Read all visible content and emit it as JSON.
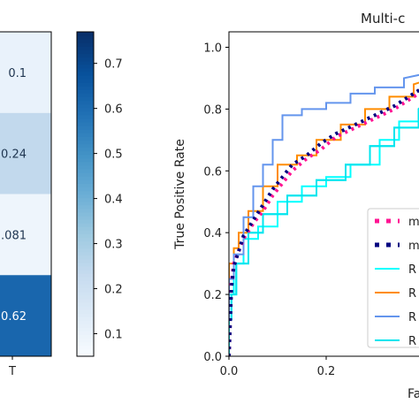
{
  "chart_data": [
    {
      "type": "heatmap",
      "cells": [
        {
          "label": "0.1",
          "value": 0.1
        },
        {
          "label": "0.24",
          "value": 0.24
        },
        {
          "label": ".081",
          "value": 0.081
        },
        {
          "label": "0.62",
          "value": 0.62
        }
      ],
      "x_tick_label": "T",
      "colorbar": {
        "range": [
          0.05,
          0.77
        ],
        "ticks": [
          "0.1",
          "0.2",
          "0.3",
          "0.4",
          "0.5",
          "0.6",
          "0.7"
        ],
        "colormap": "Blues"
      }
    },
    {
      "type": "line",
      "title": "Multi-c",
      "xlabel": "Fa",
      "ylabel": "True Positive Rate",
      "xlim": [
        0,
        0.42
      ],
      "ylim": [
        0,
        1.05
      ],
      "x_ticks": [
        "0.0",
        "0.2"
      ],
      "y_ticks": [
        "0.0",
        "0.2",
        "0.4",
        "0.6",
        "0.8",
        "1.0"
      ],
      "legend_position": "lower-right",
      "series": [
        {
          "legend_label": "m",
          "style": "dotted",
          "color": "#ff1493",
          "x": [
            0,
            0.005,
            0.01,
            0.02,
            0.03,
            0.05,
            0.07,
            0.09,
            0.11,
            0.13,
            0.16,
            0.19,
            0.22,
            0.26,
            0.3,
            0.34,
            0.37,
            0.4,
            0.42
          ],
          "y": [
            0,
            0.24,
            0.3,
            0.34,
            0.38,
            0.43,
            0.47,
            0.52,
            0.56,
            0.6,
            0.64,
            0.67,
            0.71,
            0.74,
            0.77,
            0.8,
            0.83,
            0.86,
            0.89
          ]
        },
        {
          "legend_label": "m",
          "style": "dotted",
          "color": "#000080",
          "x": [
            0,
            0.005,
            0.01,
            0.02,
            0.03,
            0.05,
            0.07,
            0.09,
            0.11,
            0.13,
            0.16,
            0.19,
            0.22,
            0.26,
            0.3,
            0.34,
            0.37,
            0.4,
            0.42
          ],
          "y": [
            0,
            0.22,
            0.29,
            0.34,
            0.39,
            0.44,
            0.49,
            0.54,
            0.58,
            0.62,
            0.65,
            0.69,
            0.72,
            0.75,
            0.78,
            0.81,
            0.84,
            0.87,
            0.89
          ]
        },
        {
          "legend_label": "R",
          "style": "solid",
          "color": "#00ffff",
          "x": [
            0,
            0,
            0.01,
            0.01,
            0.03,
            0.03,
            0.06,
            0.06,
            0.1,
            0.1,
            0.15,
            0.15,
            0.2,
            0.2,
            0.25,
            0.25,
            0.31,
            0.31,
            0.35,
            0.35,
            0.4,
            0.4,
            0.42
          ],
          "y": [
            0,
            0.2,
            0.2,
            0.3,
            0.3,
            0.38,
            0.38,
            0.42,
            0.42,
            0.5,
            0.5,
            0.55,
            0.55,
            0.58,
            0.58,
            0.62,
            0.62,
            0.7,
            0.7,
            0.76,
            0.76,
            0.82,
            0.86
          ]
        },
        {
          "legend_label": "R",
          "style": "solid",
          "color": "#ff8c00",
          "x": [
            0,
            0,
            0.01,
            0.01,
            0.02,
            0.02,
            0.04,
            0.04,
            0.07,
            0.07,
            0.1,
            0.1,
            0.14,
            0.14,
            0.18,
            0.18,
            0.23,
            0.23,
            0.28,
            0.28,
            0.33,
            0.33,
            0.38,
            0.38,
            0.42
          ],
          "y": [
            0,
            0.3,
            0.3,
            0.35,
            0.35,
            0.4,
            0.4,
            0.47,
            0.47,
            0.55,
            0.55,
            0.62,
            0.62,
            0.65,
            0.65,
            0.7,
            0.7,
            0.75,
            0.75,
            0.8,
            0.8,
            0.84,
            0.84,
            0.88,
            0.9
          ]
        },
        {
          "legend_label": "R",
          "style": "solid",
          "color": "#6495ed",
          "x": [
            0,
            0,
            0.01,
            0.01,
            0.03,
            0.03,
            0.05,
            0.05,
            0.07,
            0.07,
            0.09,
            0.09,
            0.11,
            0.11,
            0.15,
            0.15,
            0.2,
            0.2,
            0.25,
            0.25,
            0.3,
            0.3,
            0.36,
            0.36,
            0.42
          ],
          "y": [
            0,
            0.25,
            0.25,
            0.33,
            0.33,
            0.45,
            0.45,
            0.55,
            0.55,
            0.62,
            0.62,
            0.7,
            0.7,
            0.78,
            0.78,
            0.8,
            0.8,
            0.82,
            0.82,
            0.85,
            0.85,
            0.87,
            0.87,
            0.9,
            0.92
          ]
        },
        {
          "legend_label": "R",
          "style": "solid",
          "color": "#00e5ee",
          "x": [
            0,
            0,
            0.005,
            0.005,
            0.015,
            0.015,
            0.04,
            0.04,
            0.07,
            0.07,
            0.12,
            0.12,
            0.18,
            0.18,
            0.24,
            0.24,
            0.29,
            0.29,
            0.34,
            0.34,
            0.39,
            0.39,
            0.42
          ],
          "y": [
            0,
            0.12,
            0.12,
            0.2,
            0.2,
            0.3,
            0.3,
            0.4,
            0.4,
            0.46,
            0.46,
            0.52,
            0.52,
            0.57,
            0.57,
            0.62,
            0.62,
            0.68,
            0.68,
            0.74,
            0.74,
            0.8,
            0.84
          ]
        },
        {
          "legend_label": "",
          "style": "dashed",
          "color": "#000000",
          "x": [
            0,
            0.42
          ],
          "y": [
            0,
            0.42
          ]
        }
      ]
    }
  ]
}
